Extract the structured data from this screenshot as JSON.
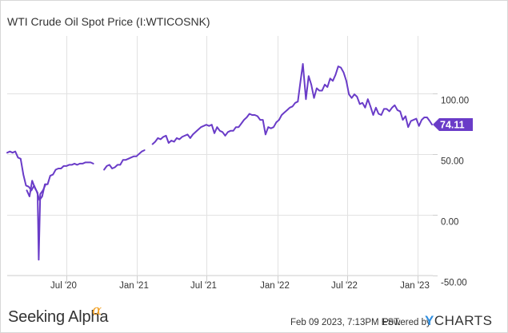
{
  "chart_data": {
    "type": "line",
    "title": "WTI Crude Oil Spot Price (I:WTICOSNK)",
    "series": [
      {
        "color": "#6a3cc8",
        "segments": [
          [
            [
              "2020-01-29",
              51
            ],
            [
              "2020-02-05",
              52
            ],
            [
              "2020-02-12",
              51
            ],
            [
              "2020-02-19",
              52
            ],
            [
              "2020-02-26",
              47
            ],
            [
              "2020-03-04",
              46
            ],
            [
              "2020-03-11",
              33
            ],
            [
              "2020-03-18",
              24
            ],
            [
              "2020-03-25",
              23
            ],
            [
              "2020-04-01",
              20
            ],
            [
              "2020-04-08",
              24
            ],
            [
              "2020-04-15",
              19
            ],
            [
              "2020-04-22",
              12
            ],
            [
              "2020-04-29",
              15
            ],
            [
              "2020-05-06",
              25
            ],
            [
              "2020-05-13",
              25
            ],
            [
              "2020-05-20",
              32
            ],
            [
              "2020-05-27",
              33
            ],
            [
              "2020-06-03",
              37
            ],
            [
              "2020-06-10",
              38
            ],
            [
              "2020-06-17",
              38
            ],
            [
              "2020-06-24",
              40
            ],
            [
              "2020-07-01",
              40
            ],
            [
              "2020-07-08",
              41
            ],
            [
              "2020-07-15",
              41
            ],
            [
              "2020-07-22",
              42
            ],
            [
              "2020-07-29",
              41
            ],
            [
              "2020-08-05",
              42
            ],
            [
              "2020-08-12",
              42
            ],
            [
              "2020-08-19",
              43
            ],
            [
              "2020-08-26",
              43
            ],
            [
              "2020-09-02",
              43
            ],
            [
              "2020-09-09",
              42
            ]
          ],
          [
            [
              "2020-03-20",
              20
            ],
            [
              "2020-03-27",
              15
            ],
            [
              "2020-04-03",
              28
            ],
            [
              "2020-04-10",
              22
            ],
            [
              "2020-04-17",
              18
            ],
            [
              "2020-04-20",
              -37
            ],
            [
              "2020-04-24",
              17
            ],
            [
              "2020-05-01",
              20
            ],
            [
              "2020-05-08",
              25
            ]
          ],
          [
            [
              "2020-10-07",
              37
            ],
            [
              "2020-10-14",
              40
            ],
            [
              "2020-10-21",
              41
            ],
            [
              "2020-10-28",
              38
            ],
            [
              "2020-11-04",
              39
            ],
            [
              "2020-11-11",
              41
            ],
            [
              "2020-11-18",
              41
            ],
            [
              "2020-11-25",
              45
            ],
            [
              "2020-12-02",
              45
            ],
            [
              "2020-12-09",
              46
            ],
            [
              "2020-12-16",
              47
            ],
            [
              "2020-12-23",
              48
            ],
            [
              "2020-12-30",
              48
            ],
            [
              "2021-01-06",
              50
            ],
            [
              "2021-01-13",
              52
            ],
            [
              "2021-01-20",
              53
            ]
          ],
          [
            [
              "2021-02-10",
              58
            ],
            [
              "2021-02-17",
              60
            ],
            [
              "2021-02-24",
              63
            ],
            [
              "2021-03-03",
              62
            ],
            [
              "2021-03-10",
              64
            ],
            [
              "2021-03-17",
              65
            ],
            [
              "2021-03-24",
              59
            ],
            [
              "2021-03-31",
              61
            ],
            [
              "2021-04-07",
              60
            ],
            [
              "2021-04-14",
              63
            ],
            [
              "2021-04-21",
              62
            ],
            [
              "2021-04-28",
              64
            ],
            [
              "2021-05-05",
              65
            ],
            [
              "2021-05-12",
              66
            ],
            [
              "2021-05-19",
              63
            ],
            [
              "2021-05-26",
              66
            ],
            [
              "2021-06-02",
              68
            ],
            [
              "2021-06-09",
              70
            ],
            [
              "2021-06-16",
              72
            ],
            [
              "2021-06-23",
              73
            ],
            [
              "2021-06-30",
              74
            ],
            [
              "2021-07-07",
              73
            ],
            [
              "2021-07-14",
              74
            ],
            [
              "2021-07-21",
              67
            ],
            [
              "2021-07-28",
              72
            ],
            [
              "2021-08-04",
              69
            ],
            [
              "2021-08-11",
              68
            ],
            [
              "2021-08-18",
              65
            ],
            [
              "2021-08-25",
              68
            ],
            [
              "2021-09-01",
              69
            ],
            [
              "2021-09-08",
              69
            ],
            [
              "2021-09-15",
              72
            ],
            [
              "2021-09-22",
              72
            ],
            [
              "2021-09-29",
              75
            ],
            [
              "2021-10-06",
              78
            ],
            [
              "2021-10-13",
              80
            ],
            [
              "2021-10-20",
              83
            ],
            [
              "2021-10-27",
              82
            ],
            [
              "2021-11-03",
              82
            ],
            [
              "2021-11-10",
              81
            ],
            [
              "2021-11-17",
              78
            ],
            [
              "2021-11-24",
              78
            ],
            [
              "2021-12-01",
              66
            ],
            [
              "2021-12-08",
              72
            ],
            [
              "2021-12-15",
              71
            ],
            [
              "2021-12-22",
              72
            ],
            [
              "2021-12-29",
              76
            ],
            [
              "2022-01-05",
              78
            ],
            [
              "2022-01-12",
              82
            ],
            [
              "2022-01-19",
              84
            ],
            [
              "2022-01-26",
              86
            ],
            [
              "2022-02-02",
              88
            ],
            [
              "2022-02-09",
              89
            ],
            [
              "2022-02-16",
              92
            ],
            [
              "2022-02-23",
              93
            ],
            [
              "2022-03-02",
              110
            ],
            [
              "2022-03-08",
              124
            ],
            [
              "2022-03-16",
              95
            ],
            [
              "2022-03-23",
              114
            ],
            [
              "2022-03-30",
              107
            ],
            [
              "2022-04-06",
              96
            ],
            [
              "2022-04-13",
              104
            ],
            [
              "2022-04-20",
              102
            ],
            [
              "2022-04-27",
              102
            ],
            [
              "2022-05-04",
              107
            ],
            [
              "2022-05-11",
              105
            ],
            [
              "2022-05-18",
              112
            ],
            [
              "2022-05-25",
              110
            ],
            [
              "2022-06-01",
              115
            ],
            [
              "2022-06-08",
              122
            ],
            [
              "2022-06-15",
              121
            ],
            [
              "2022-06-22",
              117
            ],
            [
              "2022-06-29",
              110
            ],
            [
              "2022-07-06",
              99
            ],
            [
              "2022-07-13",
              96
            ],
            [
              "2022-07-20",
              99
            ],
            [
              "2022-07-27",
              97
            ],
            [
              "2022-08-03",
              91
            ],
            [
              "2022-08-10",
              92
            ],
            [
              "2022-08-17",
              88
            ],
            [
              "2022-08-24",
              95
            ],
            [
              "2022-08-31",
              89
            ],
            [
              "2022-09-07",
              82
            ],
            [
              "2022-09-14",
              88
            ],
            [
              "2022-09-21",
              83
            ],
            [
              "2022-09-28",
              82
            ],
            [
              "2022-10-05",
              87
            ],
            [
              "2022-10-12",
              87
            ],
            [
              "2022-10-19",
              85
            ],
            [
              "2022-10-26",
              88
            ],
            [
              "2022-11-02",
              90
            ],
            [
              "2022-11-09",
              86
            ],
            [
              "2022-11-16",
              85
            ],
            [
              "2022-11-23",
              78
            ],
            [
              "2022-11-30",
              81
            ],
            [
              "2022-12-07",
              72
            ],
            [
              "2022-12-14",
              77
            ],
            [
              "2022-12-21",
              78
            ],
            [
              "2022-12-28",
              79
            ],
            [
              "2023-01-04",
              73
            ],
            [
              "2023-01-11",
              78
            ],
            [
              "2023-01-18",
              80
            ],
            [
              "2023-01-25",
              80
            ],
            [
              "2023-02-01",
              77
            ],
            [
              "2023-02-07",
              74.11
            ]
          ]
        ]
      }
    ],
    "last_value": 74.11,
    "last_value_label": "74.11",
    "x_ticks": [
      {
        "date": "2020-07-01",
        "label": "Jul '20"
      },
      {
        "date": "2021-01-01",
        "label": "Jan '21"
      },
      {
        "date": "2021-07-01",
        "label": "Jul '21"
      },
      {
        "date": "2022-01-01",
        "label": "Jan '22"
      },
      {
        "date": "2022-07-01",
        "label": "Jul '22"
      },
      {
        "date": "2023-01-01",
        "label": "Jan '23"
      }
    ],
    "y_ticks": [
      {
        "value": 100,
        "label": "100.00"
      },
      {
        "value": 50,
        "label": "50.00"
      },
      {
        "value": 0,
        "label": "0.00"
      },
      {
        "value": -50,
        "label": "-50.00"
      }
    ],
    "xlim": [
      "2020-01-29",
      "2023-02-09"
    ],
    "ylim": [
      -50,
      147
    ],
    "grid": true
  },
  "footer": {
    "brand": "Seeking Alpha",
    "brand_alpha": "α",
    "timestamp": "Feb 09 2023, 7:13PM EST.",
    "powered_by": "Powered by",
    "ycharts_y": "Y",
    "ycharts_rest": "CHARTS"
  }
}
